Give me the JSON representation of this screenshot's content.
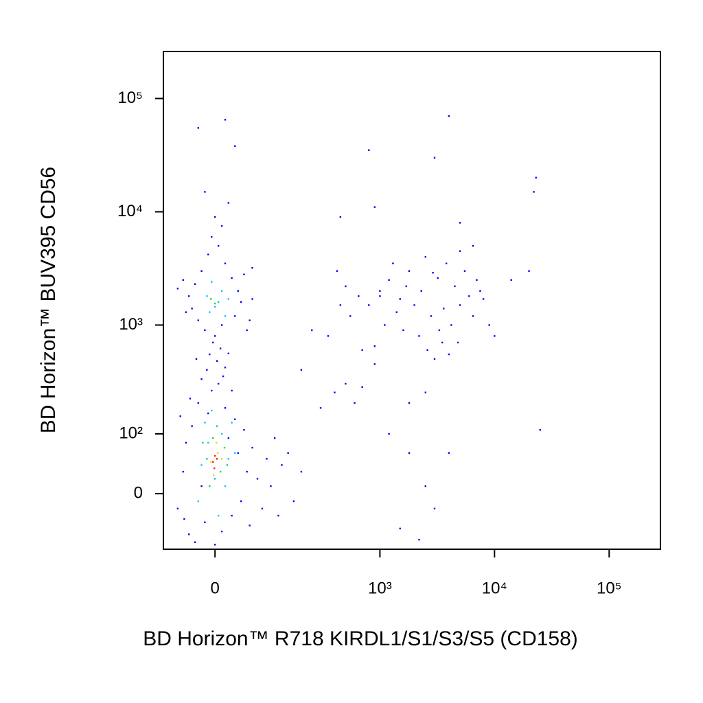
{
  "chart_data": {
    "type": "scatter",
    "x_label": "BD Horizon™ R718 KIRDL1/S1/S3/S5 (CD158)",
    "y_label": "BD Horizon™ BUV395 CD56",
    "xscale": "biexponential",
    "yscale": "biexponential",
    "xlim": [
      -90,
      280000
    ],
    "ylim": [
      -90,
      260000
    ],
    "xticks": [
      {
        "value": 0,
        "label": "0"
      },
      {
        "value": 1000,
        "label": "10³"
      },
      {
        "value": 10000,
        "label": "10⁴"
      },
      {
        "value": 100000,
        "label": "10⁵"
      }
    ],
    "yticks": [
      {
        "value": 0,
        "label": "0"
      },
      {
        "value": 100,
        "label": "10²"
      },
      {
        "value": 1000,
        "label": "10³"
      },
      {
        "value": 10000,
        "label": "10⁴"
      },
      {
        "value": 100000,
        "label": "10⁵"
      }
    ],
    "series": [
      {
        "color": "#0000ff",
        "x": [
          -60,
          -50,
          -45,
          -40,
          -35,
          -30,
          -25,
          -20,
          -15,
          -10,
          -5,
          0,
          5,
          10,
          15,
          20,
          25,
          30,
          35,
          40,
          45,
          50,
          55,
          60,
          70,
          80,
          90,
          100,
          110,
          120,
          130,
          150,
          170,
          200,
          -55,
          -48,
          -38,
          12,
          -12,
          3,
          -8,
          8,
          -3,
          15,
          -20,
          25,
          -28,
          20,
          0,
          -15,
          10,
          -25,
          30,
          -35,
          40,
          -40,
          35,
          -30,
          25,
          -20,
          15,
          -10,
          5,
          -5,
          10,
          0,
          20,
          -15,
          30,
          -25,
          15,
          45,
          -45,
          50,
          -50,
          60,
          60,
          -60,
          55,
          300,
          400,
          500,
          600,
          350,
          450,
          550,
          700,
          650,
          800,
          900,
          250,
          200,
          500,
          420,
          700,
          900,
          1000,
          1200,
          1500,
          1800,
          2500,
          4000,
          1800,
          2500,
          3000,
          2200,
          5000,
          3000,
          800,
          4000,
          22000,
          23000,
          25000,
          450,
          900,
          9000,
          10000,
          14000,
          20000,
          1000,
          1200,
          1400,
          1600,
          1800,
          2000,
          2200,
          2500,
          2800,
          3200,
          3500,
          3800,
          4200,
          4500,
          5000,
          5500,
          6000,
          6500,
          7000,
          7500,
          8000,
          1100,
          1300,
          2600,
          3000,
          4000,
          5000,
          6500,
          3300,
          2300,
          1700,
          1500,
          4800,
          3600,
          2900
        ],
        "values": [
          -20,
          30,
          80,
          -60,
          120,
          -75,
          200,
          10,
          -40,
          160,
          260,
          -80,
          300,
          -55,
          180,
          90,
          -30,
          140,
          60,
          -10,
          110,
          30,
          -45,
          70,
          20,
          -20,
          50,
          10,
          90,
          -30,
          40,
          60,
          -10,
          30,
          150,
          -35,
          220,
          350,
          400,
          480,
          550,
          620,
          700,
          420,
          330,
          260,
          500,
          560,
          800,
          900,
          1000,
          1100,
          1200,
          1400,
          1600,
          1800,
          2000,
          2300,
          2600,
          3000,
          3500,
          4200,
          5000,
          6000,
          7500,
          9000,
          12000,
          15000,
          38000,
          55000,
          65000,
          2800,
          1300,
          900,
          2500,
          1700,
          3200,
          2100,
          1100,
          180,
          250,
          300,
          200,
          800,
          1500,
          1200,
          600,
          1800,
          1500,
          450,
          900,
          400,
          2200,
          3000,
          280,
          650,
          2000,
          100,
          -50,
          60,
          10,
          60,
          200,
          250,
          -20,
          -70,
          8000,
          30000,
          35000,
          70000,
          15000,
          20000,
          110,
          9000,
          11000,
          1000,
          800,
          2500,
          3000,
          1800,
          2500,
          1300,
          900,
          3000,
          1500,
          800,
          4000,
          1200,
          2600,
          700,
          3500,
          1000,
          2200,
          1500,
          3000,
          1800,
          1200,
          2500,
          2000,
          1700,
          1000,
          3500,
          600,
          500,
          550,
          4500,
          5000,
          900,
          2000,
          2200,
          1700,
          700,
          1400,
          2900
        ]
      },
      {
        "color": "#00c8ff",
        "x": [
          -20,
          -10,
          0,
          10,
          20,
          -15,
          5,
          15,
          -5,
          25,
          -25,
          30,
          -8,
          5,
          10,
          -12,
          15,
          -5,
          0,
          20
        ],
        "values": [
          40,
          80,
          20,
          100,
          50,
          130,
          -30,
          10,
          170,
          130,
          -10,
          60,
          1300,
          1600,
          2000,
          1800,
          1200,
          2400,
          1450,
          1700
        ]
      },
      {
        "color": "#00e040",
        "x": [
          -12,
          -3,
          8,
          14,
          -8,
          3,
          -18,
          18,
          0,
          -6
        ],
        "values": [
          50,
          90,
          30,
          70,
          10,
          120,
          80,
          40,
          1550,
          1700
        ]
      },
      {
        "color": "#e0e000",
        "x": [
          -6,
          4,
          10,
          -2,
          2
        ],
        "values": [
          45,
          60,
          50,
          25,
          80
        ]
      },
      {
        "color": "#ff2000",
        "x": [
          -3,
          3,
          0,
          -1
        ],
        "values": [
          45,
          50,
          55,
          35
        ]
      }
    ]
  }
}
